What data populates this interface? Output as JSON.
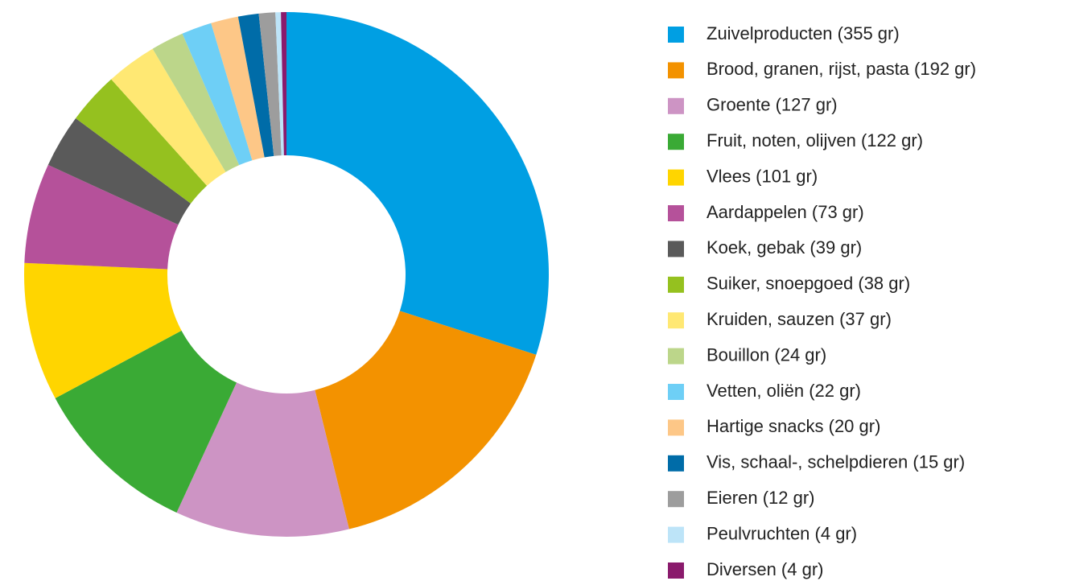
{
  "chart_data": {
    "type": "donut",
    "categories": [
      "Zuivelproducten (355 gr)",
      "Brood, granen, rijst, pasta (192 gr)",
      "Groente (127 gr)",
      "Fruit, noten, olijven (122 gr)",
      "Vlees (101 gr)",
      "Aardappelen (73 gr)",
      "Koek, gebak (39 gr)",
      "Suiker, snoepgoed (38 gr)",
      "Kruiden, sauzen (37 gr)",
      "Bouillon (24 gr)",
      "Vetten, oliën (22 gr)",
      "Hartige snacks (20 gr)",
      "Vis, schaal-, schelpdieren (15 gr)",
      "Eieren (12 gr)",
      "Peulvruchten (4 gr)",
      "Diversen (4 gr)"
    ],
    "values": [
      355,
      192,
      127,
      122,
      101,
      73,
      39,
      38,
      37,
      24,
      22,
      20,
      15,
      12,
      4,
      4
    ],
    "colors": [
      "#009fe3",
      "#f39200",
      "#cd94c4",
      "#3aaa35",
      "#ffd500",
      "#b5519a",
      "#5a5a5a",
      "#95c11f",
      "#ffe873",
      "#bcd68a",
      "#6ecff6",
      "#fdc787",
      "#006ca8",
      "#9d9d9d",
      "#bde4f8",
      "#8a1a6c"
    ],
    "legend": "right"
  }
}
